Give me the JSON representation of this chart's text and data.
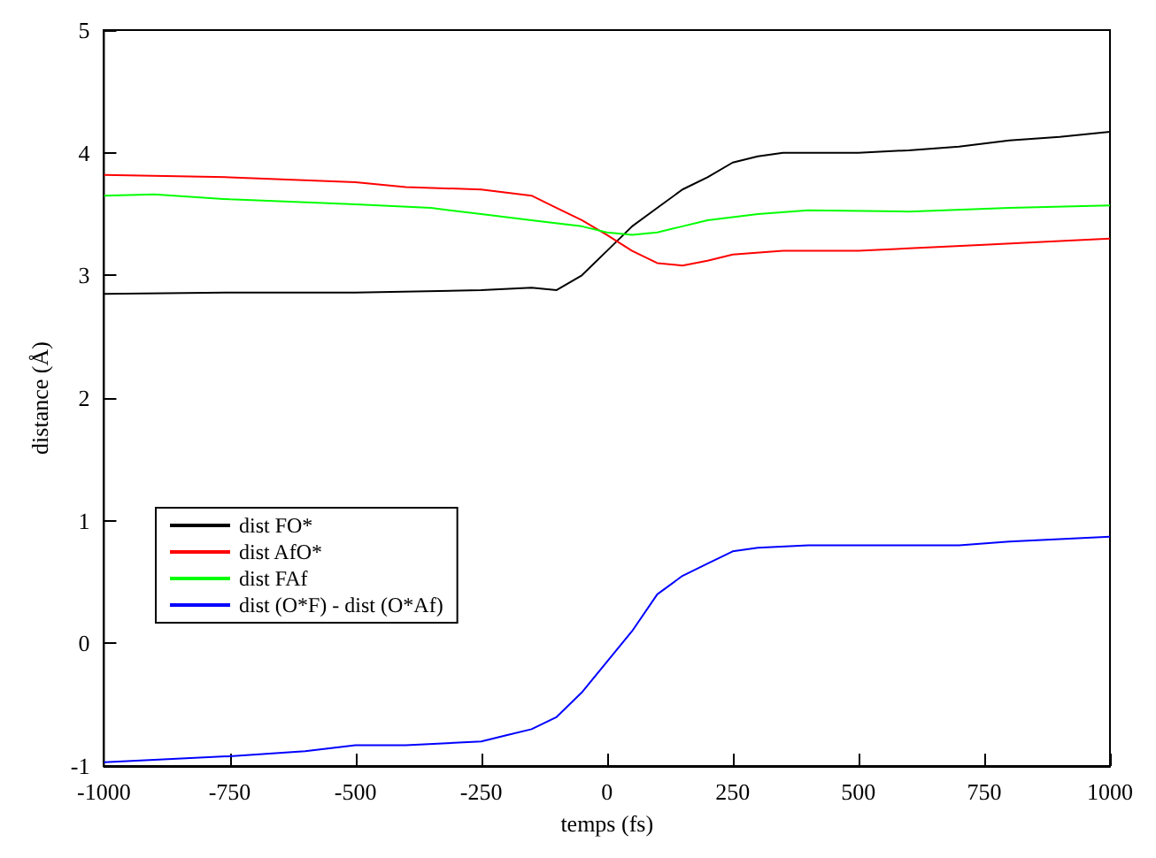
{
  "chart_data": {
    "type": "line",
    "xlabel": "temps (fs)",
    "ylabel": "distance (Å)",
    "xlim": [
      -1000,
      1000
    ],
    "ylim": [
      -1,
      5
    ],
    "xticks": [
      -1000,
      -750,
      -500,
      -250,
      0,
      250,
      500,
      750,
      1000
    ],
    "yticks": [
      -1,
      0,
      1,
      2,
      3,
      4,
      5
    ],
    "grid": false,
    "legend": "bottom left",
    "marker": "none",
    "line_style": "solid",
    "series": [
      {
        "name": "dist FO*",
        "color": "#000000",
        "x": [
          -1000,
          -750,
          -500,
          -250,
          -150,
          -100,
          -50,
          0,
          50,
          100,
          150,
          200,
          250,
          300,
          350,
          500,
          600,
          700,
          800,
          900,
          1000
        ],
        "values": [
          2.85,
          2.86,
          2.86,
          2.88,
          2.9,
          2.88,
          3.0,
          3.2,
          3.4,
          3.55,
          3.7,
          3.8,
          3.92,
          3.97,
          4.0,
          4.0,
          4.02,
          4.05,
          4.1,
          4.13,
          4.17
        ]
      },
      {
        "name": "dist AfO*",
        "color": "#ff0000",
        "x": [
          -1000,
          -750,
          -500,
          -400,
          -250,
          -150,
          -100,
          -50,
          0,
          50,
          100,
          150,
          200,
          250,
          350,
          500,
          600,
          750,
          900,
          1000
        ],
        "values": [
          3.82,
          3.8,
          3.76,
          3.72,
          3.7,
          3.65,
          3.55,
          3.45,
          3.33,
          3.2,
          3.1,
          3.08,
          3.12,
          3.17,
          3.2,
          3.2,
          3.22,
          3.25,
          3.28,
          3.3
        ]
      },
      {
        "name": "dist FAf",
        "color": "#00ff00",
        "x": [
          -1000,
          -900,
          -750,
          -500,
          -350,
          -250,
          -150,
          -50,
          0,
          50,
          100,
          150,
          200,
          300,
          400,
          600,
          800,
          1000
        ],
        "values": [
          3.65,
          3.66,
          3.62,
          3.58,
          3.55,
          3.5,
          3.45,
          3.4,
          3.35,
          3.33,
          3.35,
          3.4,
          3.45,
          3.5,
          3.53,
          3.52,
          3.55,
          3.57
        ]
      },
      {
        "name": "dist (O*F) - dist (O*Af)",
        "color": "#0000ff",
        "x": [
          -1000,
          -900,
          -750,
          -600,
          -500,
          -400,
          -250,
          -200,
          -150,
          -100,
          -50,
          0,
          50,
          100,
          150,
          200,
          250,
          300,
          400,
          500,
          600,
          700,
          800,
          900,
          1000
        ],
        "values": [
          -0.97,
          -0.95,
          -0.92,
          -0.88,
          -0.83,
          -0.83,
          -0.8,
          -0.75,
          -0.7,
          -0.6,
          -0.4,
          -0.15,
          0.1,
          0.4,
          0.55,
          0.65,
          0.75,
          0.78,
          0.8,
          0.8,
          0.8,
          0.8,
          0.83,
          0.85,
          0.87
        ]
      }
    ]
  }
}
